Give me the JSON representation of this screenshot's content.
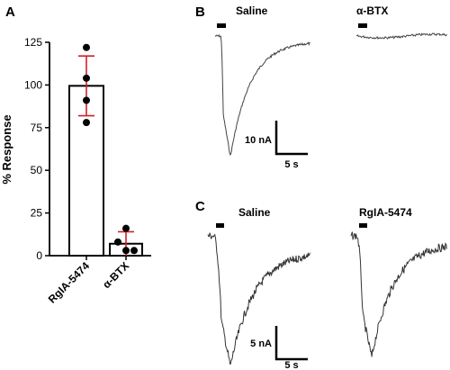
{
  "panels": {
    "A": {
      "letter": "A"
    },
    "B": {
      "letter": "B",
      "left_label": "Saline",
      "right_label": "α-BTX",
      "scale": {
        "y_label": "10 nA",
        "x_label": "5 s"
      }
    },
    "C": {
      "letter": "C",
      "left_label": "Saline",
      "right_label": "RgIA-5474",
      "scale": {
        "y_label": "5 nA",
        "x_label": "5 s"
      }
    }
  },
  "chart_data": [
    {
      "panel": "A",
      "type": "bar",
      "categories": [
        "RgIA-5474",
        "α-BTX"
      ],
      "values": [
        99.5,
        7
      ],
      "error": [
        17.5,
        7
      ],
      "points": [
        [
          122,
          104,
          91,
          78
        ],
        [
          16,
          8,
          3,
          3
        ]
      ],
      "ylabel": "% Response",
      "ylim": [
        0,
        125
      ],
      "yticks": [
        0,
        25,
        50,
        75,
        100,
        125
      ],
      "xlabel": "",
      "grid": false,
      "colors": {
        "bar_fill": "#ffffff",
        "bar_edge": "#000000",
        "error": "#d0202a",
        "points": "#000000"
      }
    }
  ]
}
